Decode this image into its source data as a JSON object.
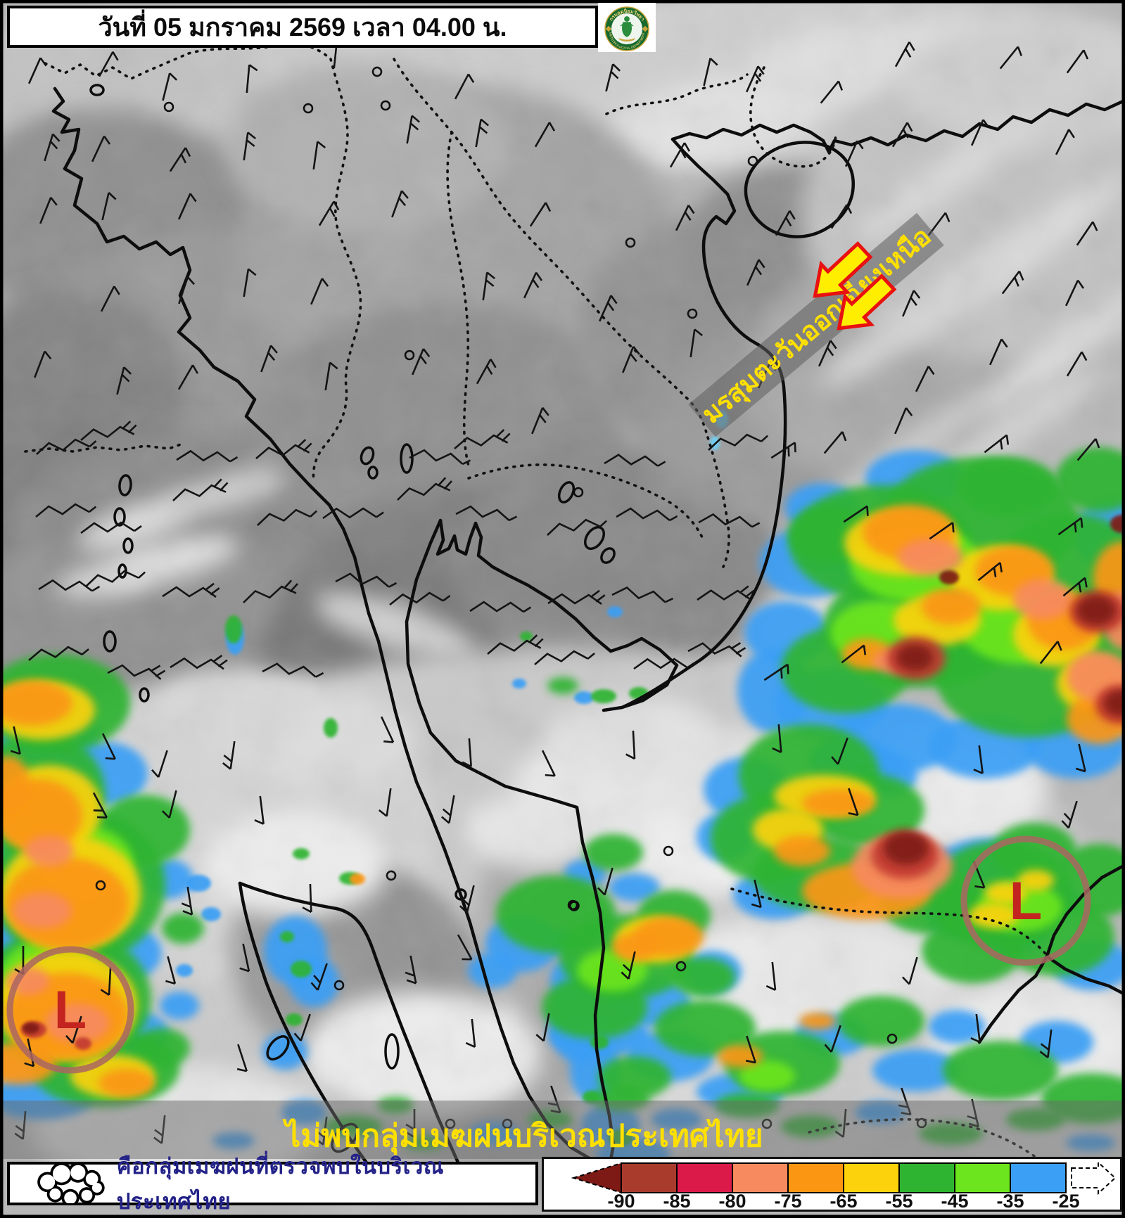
{
  "header": {
    "title": "วันที่ 05 มกราคม 2569 เวลา 04.00 น."
  },
  "logo": {
    "top_text": "กรมอุตุนิยมวิทยา",
    "bottom_text": "METEOROLOGICAL DEPARTMENT"
  },
  "map": {
    "monsoon_label": "มรสุมตะวันออกเฉียงเหนือ",
    "low_pressure_symbol": "L",
    "banner_text": "ไม่พบกลุ่มเมฆฝนบริเวณประเทศไทย"
  },
  "legend": {
    "cloud_note": "คือกลุ่มเมฆฝนที่ตรวจพบในบริเวณประเทศไทย",
    "scale_labels": [
      "-90",
      "-85",
      "-80",
      "-75",
      "-65",
      "-55",
      "-45",
      "-35",
      "-25"
    ],
    "scale_colors": [
      "#a93b2d",
      "#dc1a4a",
      "#f78a5f",
      "#fb9612",
      "#fbd20c",
      "#2eb430",
      "#6ce51e",
      "#3b9ff5"
    ],
    "scale_arrow_color": "#7e1a15"
  },
  "colors": {
    "banner_text": "#ffe000",
    "monsoon_text": "#ffe000",
    "low_symbol": "#c3241f",
    "low_circle": "#aa6662",
    "note_text": "#232288",
    "coastline": "#0d0d0d"
  }
}
